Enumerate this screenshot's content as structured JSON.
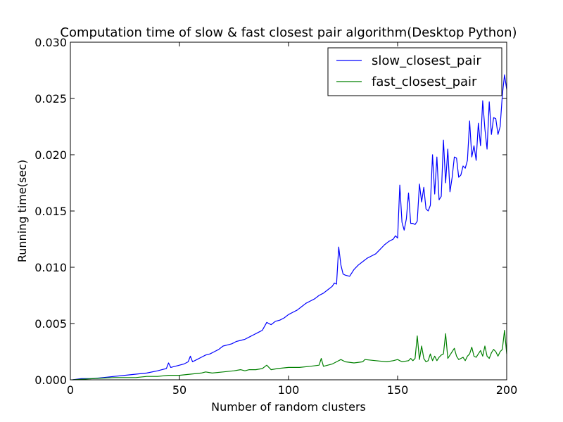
{
  "chart_data": {
    "type": "line",
    "title": "Computation time of slow & fast closest pair algorithm(Desktop Python)",
    "xlabel": "Number of random clusters",
    "ylabel": "Running time(sec)",
    "xlim": [
      0,
      200
    ],
    "ylim": [
      0,
      0.03
    ],
    "x_ticks": [
      0,
      50,
      100,
      150,
      200
    ],
    "x_tick_labels": [
      "0",
      "50",
      "100",
      "150",
      "200"
    ],
    "y_ticks": [
      0,
      0.005,
      0.01,
      0.015,
      0.02,
      0.025,
      0.03
    ],
    "y_tick_labels": [
      "0.000",
      "0.005",
      "0.010",
      "0.015",
      "0.020",
      "0.025",
      "0.030"
    ],
    "grid": false,
    "legend_position": "top-right",
    "series": [
      {
        "name": "slow_closest_pair",
        "color": "#0000ff",
        "x": [
          1,
          5,
          10,
          15,
          20,
          25,
          30,
          35,
          40,
          42,
          44,
          45,
          46,
          48,
          50,
          52,
          54,
          55,
          56,
          58,
          60,
          62,
          64,
          66,
          68,
          70,
          72,
          74,
          76,
          78,
          80,
          82,
          84,
          86,
          88,
          90,
          92,
          94,
          96,
          98,
          100,
          102,
          104,
          106,
          108,
          110,
          112,
          114,
          116,
          118,
          120,
          121,
          122,
          123,
          124,
          125,
          126,
          128,
          130,
          132,
          134,
          136,
          138,
          140,
          142,
          144,
          146,
          148,
          149,
          150,
          151,
          152,
          153,
          154,
          155,
          156,
          157,
          158,
          159,
          160,
          161,
          162,
          163,
          164,
          165,
          166,
          167,
          168,
          169,
          170,
          171,
          172,
          173,
          174,
          175,
          176,
          177,
          178,
          179,
          180,
          181,
          182,
          183,
          184,
          185,
          186,
          187,
          188,
          189,
          190,
          191,
          192,
          193,
          194,
          195,
          196,
          197,
          198,
          199,
          200
        ],
        "values": [
          0.0,
          0.0001,
          0.0001,
          0.0002,
          0.0003,
          0.0004,
          0.0005,
          0.0006,
          0.0008,
          0.0009,
          0.001,
          0.0015,
          0.0011,
          0.0012,
          0.0013,
          0.0014,
          0.0016,
          0.0021,
          0.0016,
          0.0018,
          0.002,
          0.0022,
          0.0023,
          0.0025,
          0.0027,
          0.003,
          0.0031,
          0.0032,
          0.0034,
          0.0035,
          0.0036,
          0.0038,
          0.004,
          0.0042,
          0.0044,
          0.0051,
          0.0049,
          0.0052,
          0.0053,
          0.0055,
          0.0058,
          0.006,
          0.0062,
          0.0065,
          0.0068,
          0.007,
          0.0072,
          0.0075,
          0.0077,
          0.008,
          0.0083,
          0.0086,
          0.0085,
          0.0118,
          0.0102,
          0.0094,
          0.0093,
          0.0092,
          0.0098,
          0.0102,
          0.0105,
          0.0108,
          0.011,
          0.0112,
          0.0116,
          0.012,
          0.0123,
          0.0125,
          0.0128,
          0.0126,
          0.0173,
          0.014,
          0.0133,
          0.0143,
          0.0166,
          0.0139,
          0.0139,
          0.0138,
          0.0141,
          0.0174,
          0.0158,
          0.0171,
          0.0152,
          0.015,
          0.0155,
          0.02,
          0.0165,
          0.0198,
          0.016,
          0.0163,
          0.0213,
          0.0175,
          0.0205,
          0.0167,
          0.018,
          0.0198,
          0.0197,
          0.018,
          0.0182,
          0.019,
          0.0188,
          0.0195,
          0.023,
          0.0198,
          0.0208,
          0.0195,
          0.0228,
          0.0208,
          0.0248,
          0.0223,
          0.0205,
          0.0247,
          0.0218,
          0.0233,
          0.0232,
          0.0218,
          0.0225,
          0.0253,
          0.0271,
          0.0258
        ]
      },
      {
        "name": "fast_closest_pair",
        "color": "#008000",
        "x": [
          1,
          10,
          20,
          25,
          30,
          35,
          40,
          45,
          48,
          50,
          55,
          60,
          62,
          65,
          70,
          75,
          78,
          80,
          82,
          85,
          88,
          90,
          92,
          95,
          100,
          105,
          110,
          114,
          115,
          116,
          118,
          120,
          122,
          124,
          126,
          130,
          134,
          135,
          140,
          145,
          148,
          150,
          152,
          155,
          156,
          157,
          158,
          159,
          160,
          161,
          162,
          163,
          164,
          165,
          166,
          167,
          168,
          169,
          170,
          171,
          172,
          173,
          174,
          175,
          176,
          177,
          178,
          179,
          180,
          181,
          182,
          183,
          184,
          185,
          186,
          187,
          188,
          189,
          190,
          191,
          192,
          193,
          194,
          195,
          196,
          197,
          198,
          199,
          200
        ],
        "values": [
          0.0,
          0.0001,
          0.0002,
          0.0002,
          0.0002,
          0.0003,
          0.0003,
          0.0004,
          0.0004,
          0.0004,
          0.0005,
          0.0006,
          0.0007,
          0.0006,
          0.0007,
          0.0008,
          0.0009,
          0.0008,
          0.0009,
          0.0009,
          0.001,
          0.0013,
          0.0009,
          0.001,
          0.0011,
          0.0011,
          0.0012,
          0.0013,
          0.0019,
          0.0012,
          0.0013,
          0.0014,
          0.0016,
          0.0018,
          0.0016,
          0.0015,
          0.0016,
          0.0018,
          0.0017,
          0.0016,
          0.0017,
          0.0018,
          0.0016,
          0.0017,
          0.0019,
          0.0017,
          0.0019,
          0.0039,
          0.0018,
          0.003,
          0.0019,
          0.0016,
          0.0017,
          0.0023,
          0.0017,
          0.0021,
          0.0017,
          0.002,
          0.0022,
          0.0023,
          0.0041,
          0.0019,
          0.0022,
          0.0025,
          0.0028,
          0.0021,
          0.0018,
          0.0019,
          0.002,
          0.0017,
          0.0021,
          0.0023,
          0.0029,
          0.0021,
          0.002,
          0.0023,
          0.0026,
          0.0021,
          0.003,
          0.0021,
          0.0019,
          0.0024,
          0.0027,
          0.0025,
          0.0021,
          0.0025,
          0.0027,
          0.0044,
          0.0023
        ]
      }
    ]
  }
}
